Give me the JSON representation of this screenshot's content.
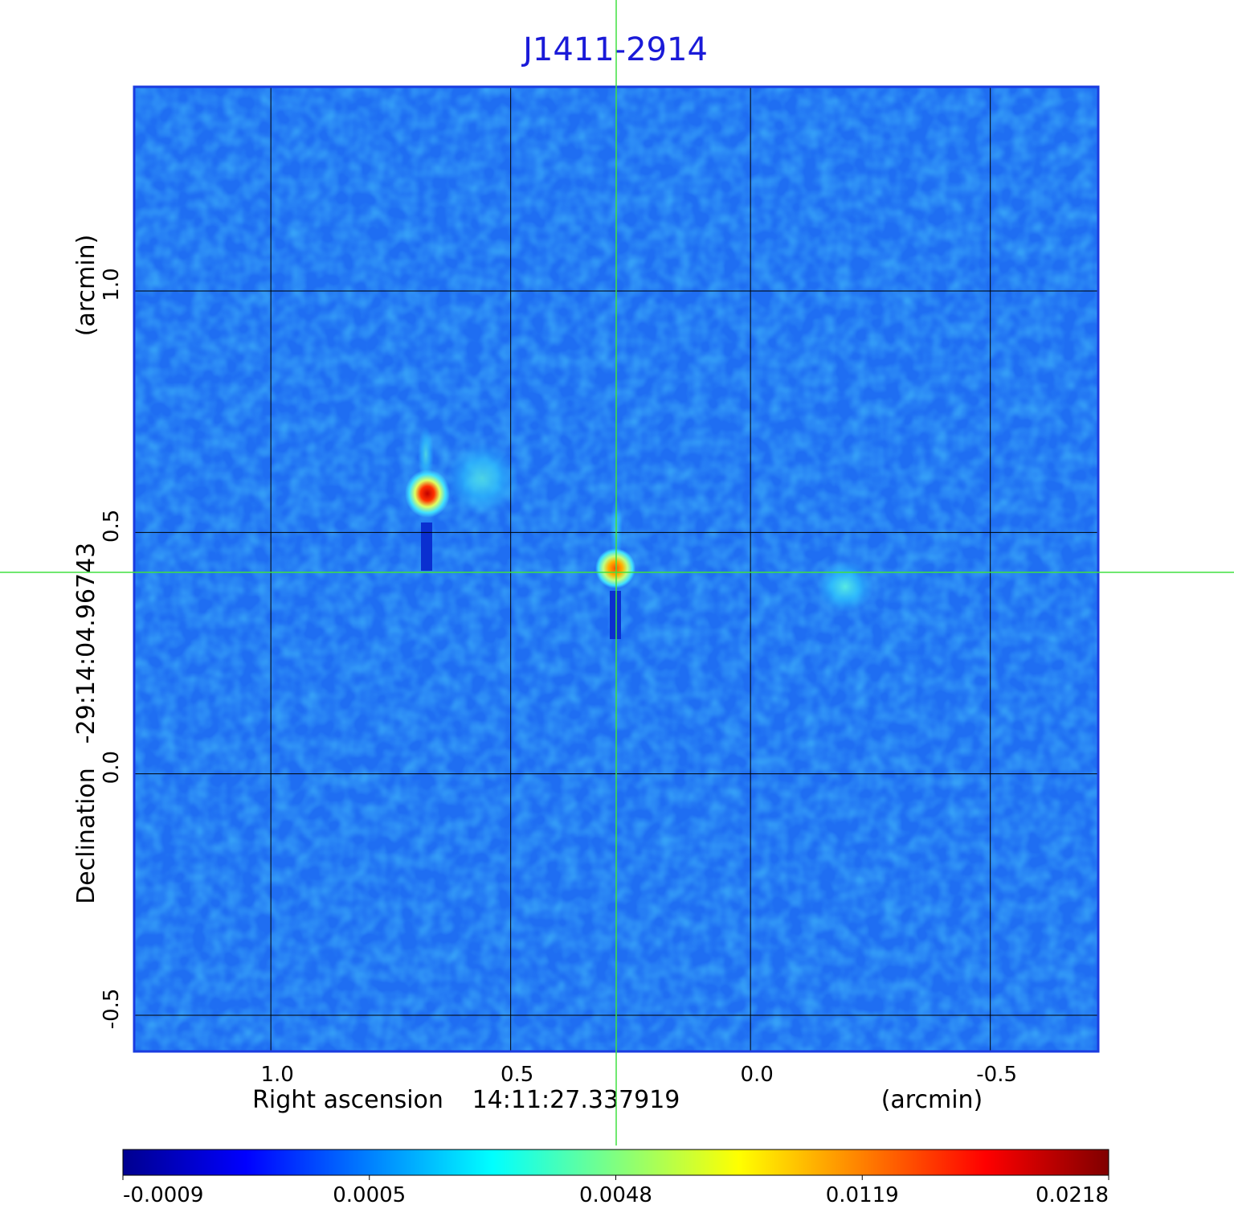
{
  "chart_data": {
    "type": "image",
    "title": "J1411-2914",
    "x_label": "Right ascension",
    "x_center": "14:11:27.337919",
    "x_unit": "(arcmin)",
    "y_label": "Declination",
    "y_center": "-29:14:04.96743",
    "y_unit": "(arcmin)",
    "xlim": [
      1.285,
      -0.725
    ],
    "xticks": [
      {
        "value": 1.0,
        "label": "1.0"
      },
      0.5,
      {
        "value": 0.0,
        "label": "0.0"
      },
      -0.5
    ],
    "ylim": [
      -0.575,
      1.423
    ],
    "yticks": [
      {
        "value": 1.0,
        "label": "1.0"
      },
      0.5,
      {
        "value": 0.0,
        "label": "0.0"
      },
      -0.5
    ],
    "grid": true,
    "grid_color": "#000000",
    "colorbar": {
      "ticks": [
        -0.0009,
        0.0005,
        0.0048,
        0.0119,
        0.0218
      ],
      "colormap": [
        "#00008f",
        "#0000ff",
        "#0080ff",
        "#00ffff",
        "#80ff80",
        "#ffff00",
        "#ff8000",
        "#ff0000",
        "#800000"
      ]
    }
  }
}
